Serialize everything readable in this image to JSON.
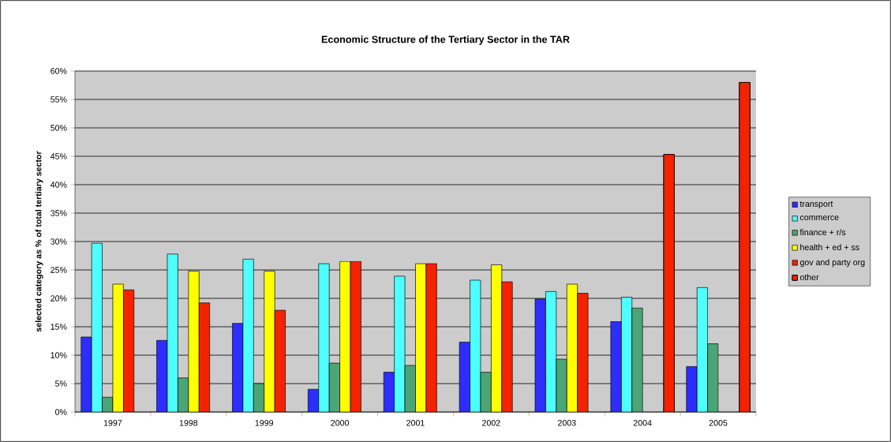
{
  "chart_data": {
    "type": "bar",
    "title": "Economic Structure of the Tertiary Sector in the TAR",
    "ylabel": "selected category as % of total tertiary sector",
    "categories": [
      "1997",
      "1998",
      "1999",
      "2000",
      "2001",
      "2002",
      "2003",
      "2004",
      "2005"
    ],
    "series": [
      {
        "name": "transport",
        "color": "#2d2dff",
        "values": [
          13.2,
          12.6,
          15.6,
          4.0,
          7.0,
          12.3,
          19.9,
          15.9,
          8.0
        ]
      },
      {
        "name": "commerce",
        "color": "#4dffff",
        "values": [
          29.7,
          27.8,
          26.9,
          26.1,
          23.9,
          23.2,
          21.2,
          20.2,
          21.9
        ]
      },
      {
        "name": "finance + r/s",
        "color": "#4ca576",
        "values": [
          2.6,
          6.0,
          5.0,
          8.6,
          8.2,
          7.0,
          9.3,
          18.3,
          12.0
        ]
      },
      {
        "name": "health + ed + ss",
        "color": "#ffff00",
        "values": [
          22.5,
          24.8,
          24.8,
          26.5,
          26.1,
          25.9,
          22.5,
          null,
          null
        ]
      },
      {
        "name": "gov and party org",
        "color": "#f52200",
        "values": [
          21.5,
          19.2,
          17.9,
          26.5,
          26.1,
          22.9,
          20.9,
          null,
          null
        ]
      },
      {
        "name": "other",
        "color": "#f52200",
        "values": [
          null,
          null,
          null,
          null,
          null,
          null,
          null,
          45.3,
          58.0
        ]
      }
    ],
    "ylim": [
      0,
      60
    ],
    "yticks": [
      {
        "value": 0,
        "label": "0%"
      },
      {
        "value": 5,
        "label": "5%"
      },
      {
        "value": 10,
        "label": "10%"
      },
      {
        "value": 15,
        "label": "15%"
      },
      {
        "value": 20,
        "label": "20%"
      },
      {
        "value": 25,
        "label": "25%"
      },
      {
        "value": 30,
        "label": "30%"
      },
      {
        "value": 35,
        "label": "35%"
      },
      {
        "value": 40,
        "label": "40%"
      },
      {
        "value": 45,
        "label": "45%"
      },
      {
        "value": 50,
        "label": "50%"
      },
      {
        "value": 55,
        "label": "55%"
      },
      {
        "value": 60,
        "label": "60%"
      }
    ],
    "grid": "y",
    "legend": "right"
  }
}
